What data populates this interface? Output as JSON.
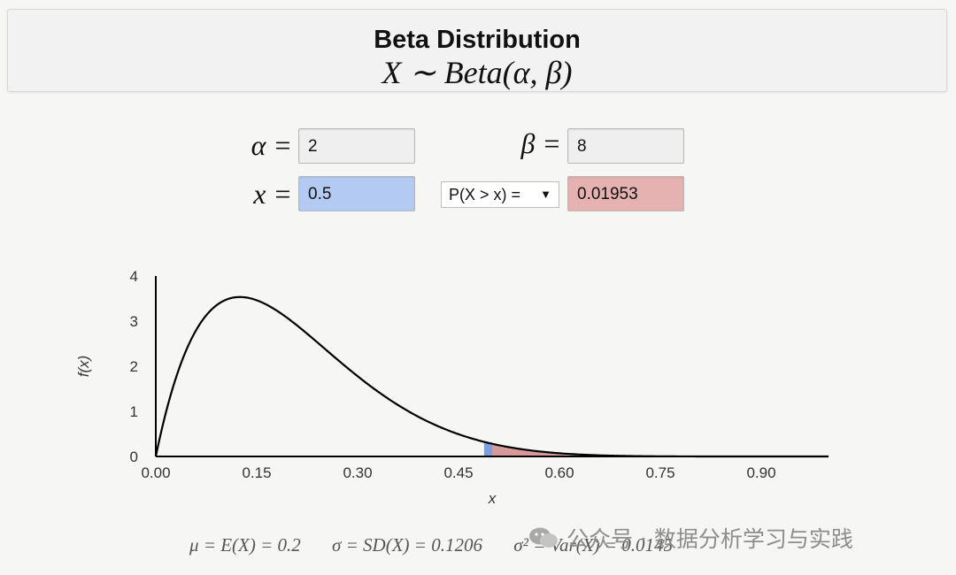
{
  "header": {
    "title": "Beta Distribution",
    "subtitle": "X ∼ Beta(α, β)"
  },
  "params": {
    "alpha_label": "α =",
    "alpha_value": "2",
    "beta_label": "β =",
    "beta_value": "8",
    "x_label": "x =",
    "x_value": "0.5",
    "prob_select": "P(X > x) =",
    "prob_value": "0.01953"
  },
  "stats": {
    "mean": "μ = E(X) = 0.2",
    "sd": "σ = SD(X) = 0.1206",
    "var": "σ² = Var(X) = 0.0145"
  },
  "watermark": {
    "text": "公众号 · 数据分析学习与实践"
  },
  "colors": {
    "left_area": "#7b9ee2",
    "right_area": "#d69a9a",
    "curve": "#000000"
  },
  "chart_data": {
    "type": "line",
    "function": "beta_pdf",
    "alpha": 2,
    "beta": 8,
    "x_marker": 0.5,
    "shade": "right",
    "xlabel": "x",
    "ylabel": "f(x)",
    "xlim": [
      0,
      1
    ],
    "ylim": [
      0,
      4
    ],
    "x_ticks": [
      0.0,
      0.15,
      0.3,
      0.45,
      0.6,
      0.75,
      0.9
    ],
    "x_tick_labels": [
      "0.00",
      "0.15",
      "0.30",
      "0.45",
      "0.60",
      "0.75",
      "0.90"
    ],
    "y_ticks": [
      0,
      1,
      2,
      3,
      4
    ],
    "y_tick_labels": [
      "0",
      "1",
      "2",
      "3",
      "4"
    ],
    "grid": false
  }
}
